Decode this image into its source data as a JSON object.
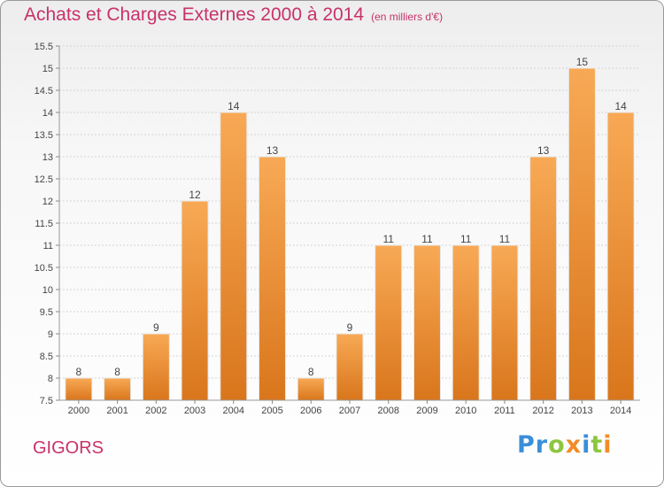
{
  "title": {
    "main": "Achats et Charges Externes 2000 à 2014",
    "unit": "(en milliers d'€)"
  },
  "commune": "GIGORS",
  "brand": {
    "name": "Proxiti",
    "letters": [
      {
        "ch": "P",
        "color": "#3a8fd8"
      },
      {
        "ch": "r",
        "color": "#3a8fd8"
      },
      {
        "ch": "o",
        "color": "#8dc63f"
      },
      {
        "ch": "x",
        "color": "#f28c28"
      },
      {
        "ch": "i",
        "color": "#3a8fd8"
      },
      {
        "ch": "t",
        "color": "#8dc63f"
      },
      {
        "ch": "i",
        "color": "#f28c28"
      }
    ]
  },
  "colors": {
    "title": "#c8326a",
    "bar_light": "#f8a955",
    "bar_dark": "#d9761c",
    "label": "#444444"
  },
  "chart_data": {
    "type": "bar",
    "categories": [
      "2000",
      "2001",
      "2002",
      "2003",
      "2004",
      "2005",
      "2006",
      "2007",
      "2008",
      "2009",
      "2010",
      "2011",
      "2012",
      "2013",
      "2014"
    ],
    "values": [
      8,
      8,
      9,
      12,
      14,
      13,
      8,
      9,
      11,
      11,
      11,
      11,
      13,
      15,
      14
    ],
    "value_labels": [
      "8",
      "8",
      "9",
      "12",
      "14",
      "13",
      "8",
      "9",
      "11",
      "11",
      "11",
      "11",
      "13",
      "15",
      "14"
    ],
    "ylim": [
      7.5,
      15.5
    ],
    "yticks": [
      7.5,
      8,
      8.5,
      9,
      9.5,
      10,
      10.5,
      11,
      11.5,
      12,
      12.5,
      13,
      13.5,
      14,
      14.5,
      15,
      15.5
    ],
    "ytick_labels": [
      "7.5",
      "8",
      "8.5",
      "9",
      "9.5",
      "10",
      "10.5",
      "11",
      "11.5",
      "12",
      "12.5",
      "13",
      "13.5",
      "14",
      "14.5",
      "15",
      "15.5"
    ],
    "grid": true,
    "title": "Achats et Charges Externes 2000 à 2014",
    "xlabel": "",
    "ylabel": ""
  }
}
